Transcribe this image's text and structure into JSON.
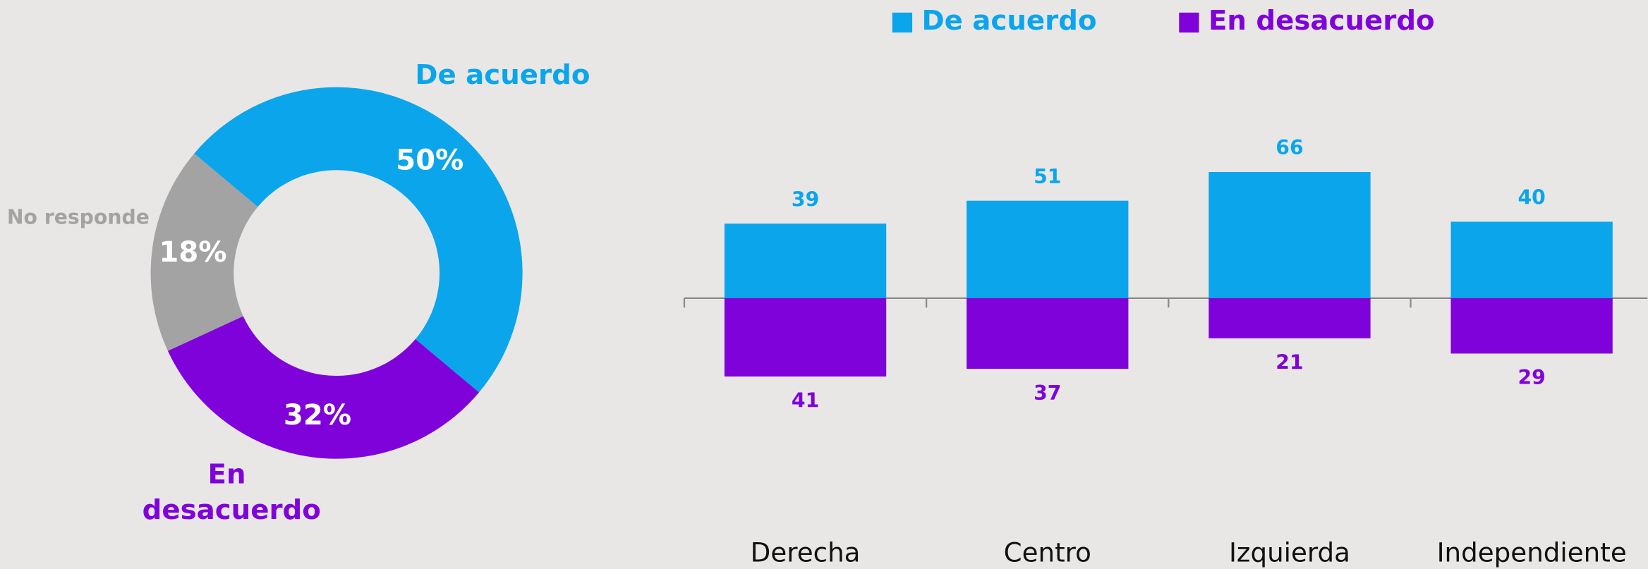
{
  "chart_data": [
    {
      "type": "pie",
      "categories": [
        "De acuerdo",
        "En desacuerdo",
        "No responde"
      ],
      "values": [
        50,
        32,
        18
      ],
      "value_labels": [
        "50%",
        "32%",
        "18%"
      ],
      "colors": [
        "#0ba5ec",
        "#8002db",
        "#a3a3a3"
      ]
    },
    {
      "type": "bar",
      "categories": [
        "Derecha",
        "Centro",
        "Izquierda",
        "Independiente"
      ],
      "series": [
        {
          "name": "De acuerdo",
          "color": "#0ba5ec",
          "values": [
            39,
            51,
            66,
            40
          ]
        },
        {
          "name": "En desacuerdo",
          "color": "#8002db",
          "values": [
            41,
            37,
            21,
            29
          ]
        }
      ]
    }
  ]
}
